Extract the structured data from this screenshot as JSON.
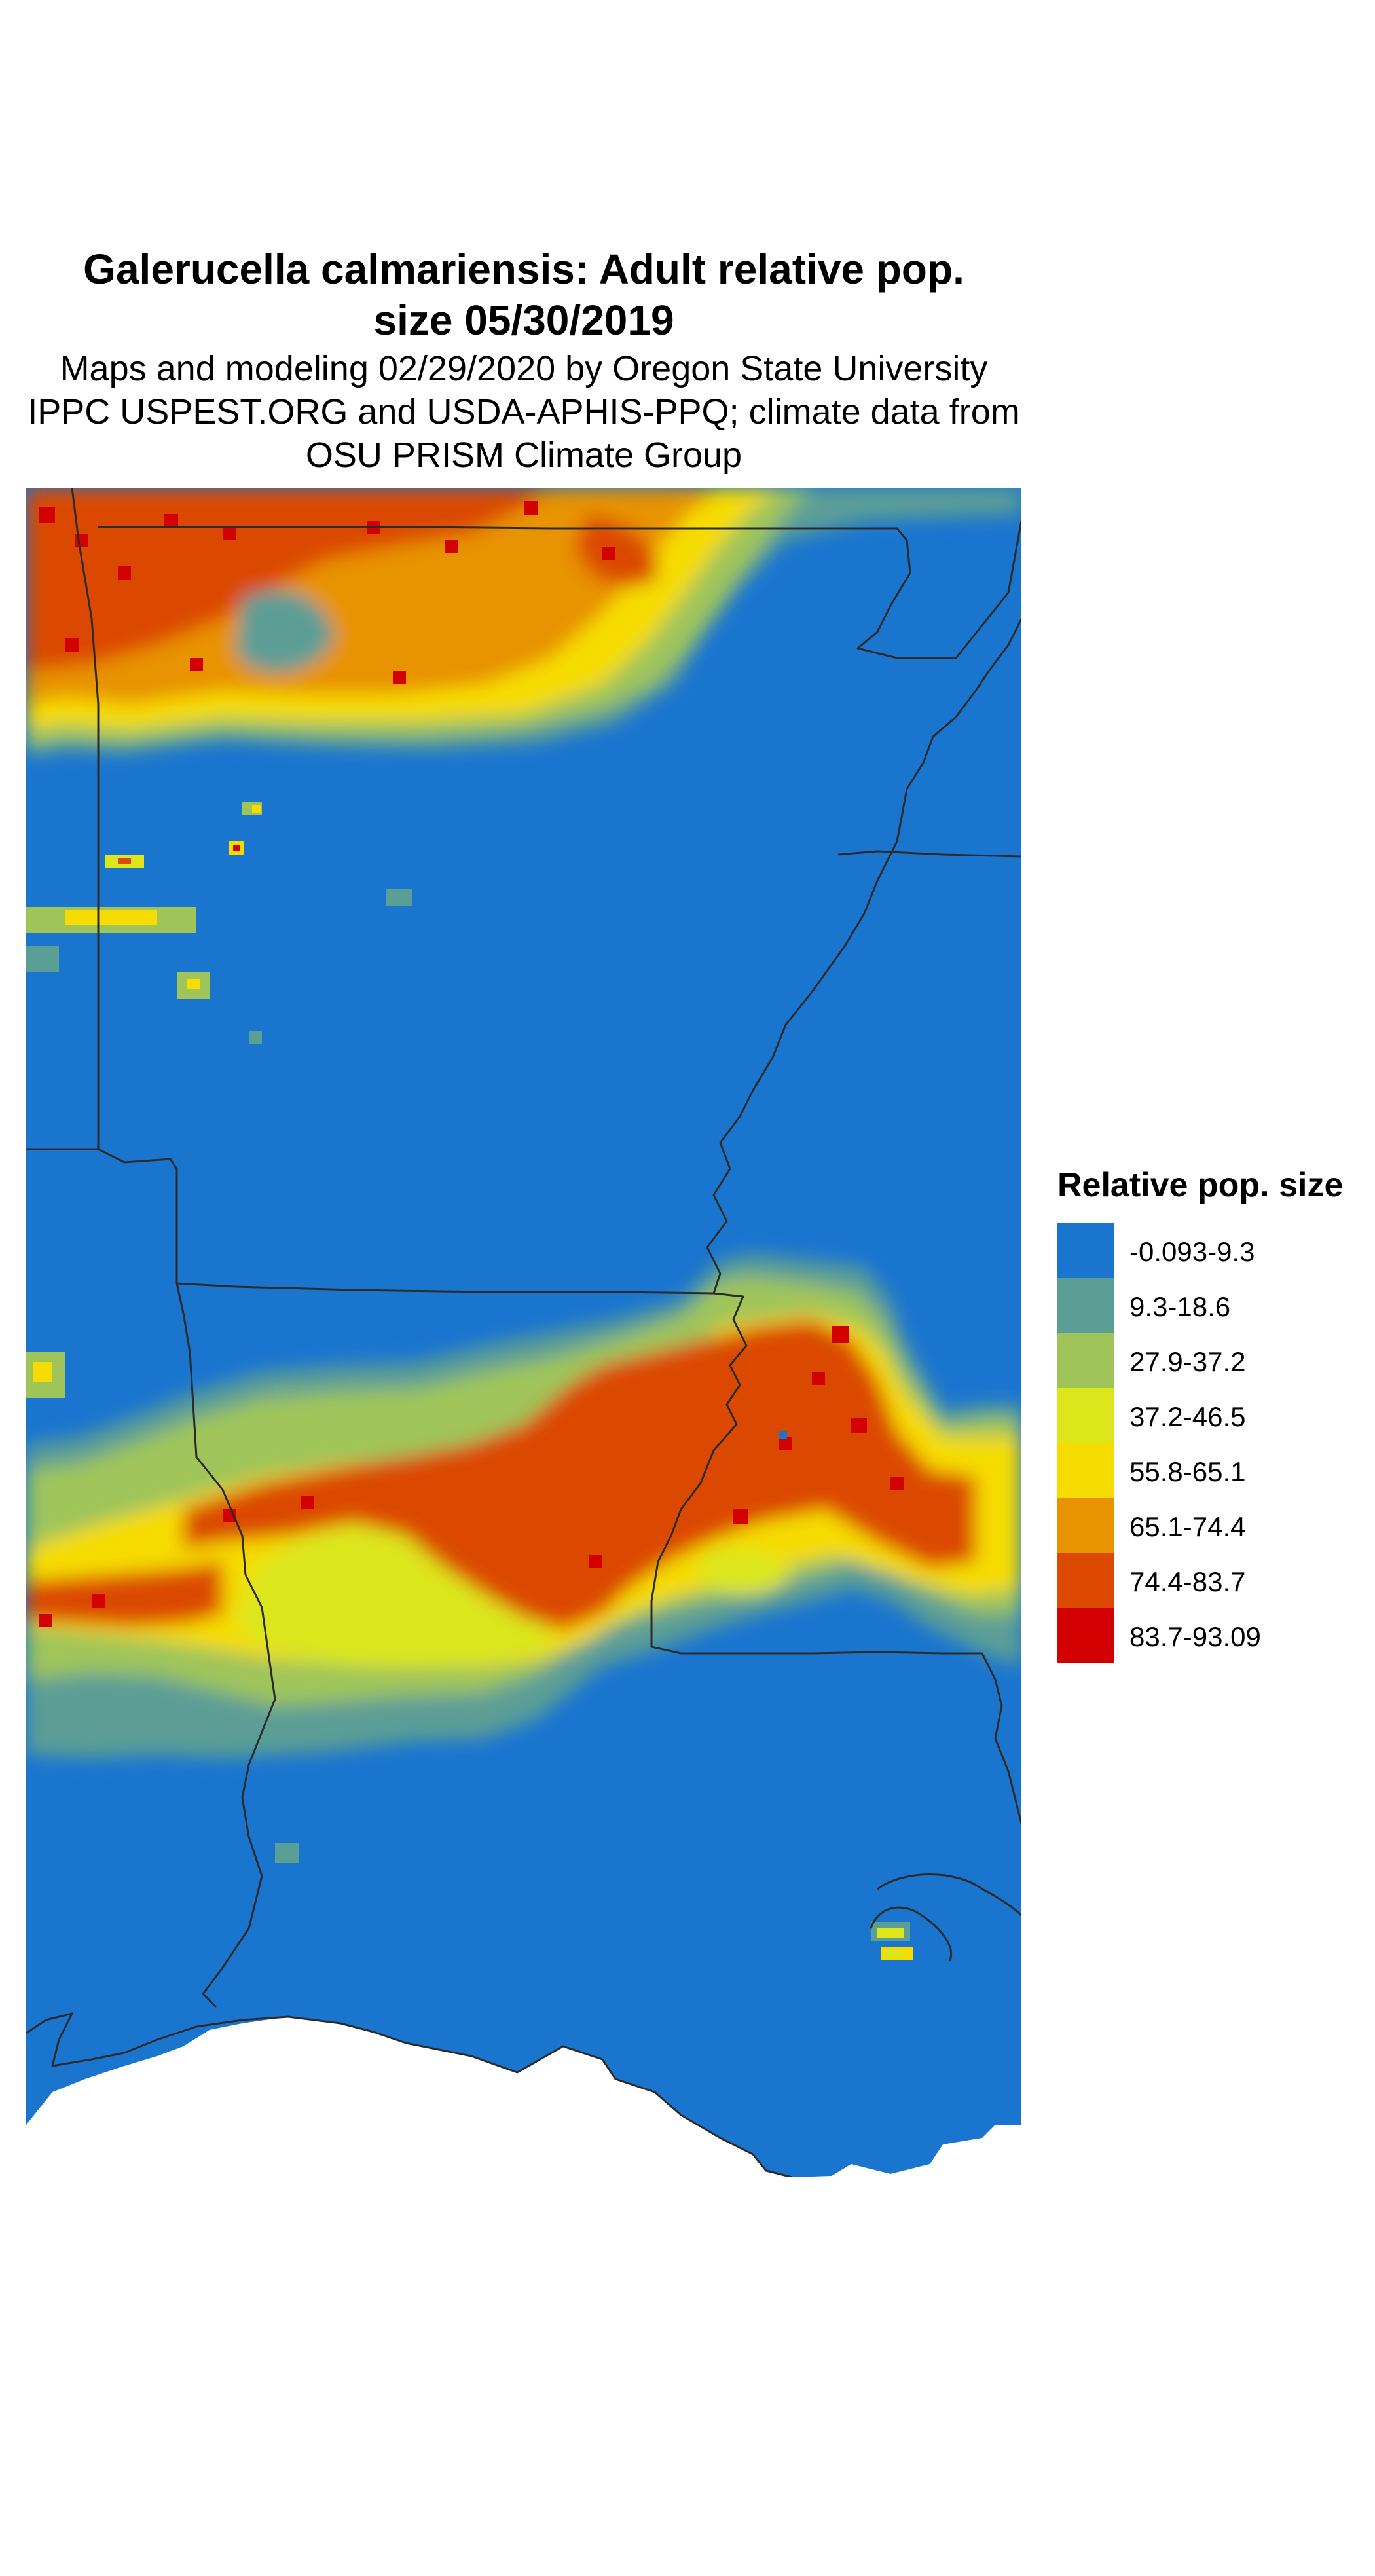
{
  "title_line1": "Galerucella calmariensis: Adult relative pop.",
  "title_line2": "size 05/30/2019",
  "subtitle_line1": "Maps and modeling 02/29/2020 by Oregon State University",
  "subtitle_line2": "IPPC USPEST.ORG and USDA-APHIS-PPQ; climate data from",
  "subtitle_line3": "OSU PRISM Climate Group",
  "legend": {
    "title": "Relative pop. size",
    "items": [
      {
        "label": "-0.093-9.3",
        "color": "#1a75cf"
      },
      {
        "label": "9.3-18.6",
        "color": "#5b9e96"
      },
      {
        "label": "27.9-37.2",
        "color": "#9fc55a"
      },
      {
        "label": "37.2-46.5",
        "color": "#dce61b"
      },
      {
        "label": "55.8-65.1",
        "color": "#f6dc00"
      },
      {
        "label": "65.1-74.4",
        "color": "#e89300"
      },
      {
        "label": "74.4-83.7",
        "color": "#db4a00"
      },
      {
        "label": "83.7-93.09",
        "color": "#d20000"
      }
    ]
  }
}
